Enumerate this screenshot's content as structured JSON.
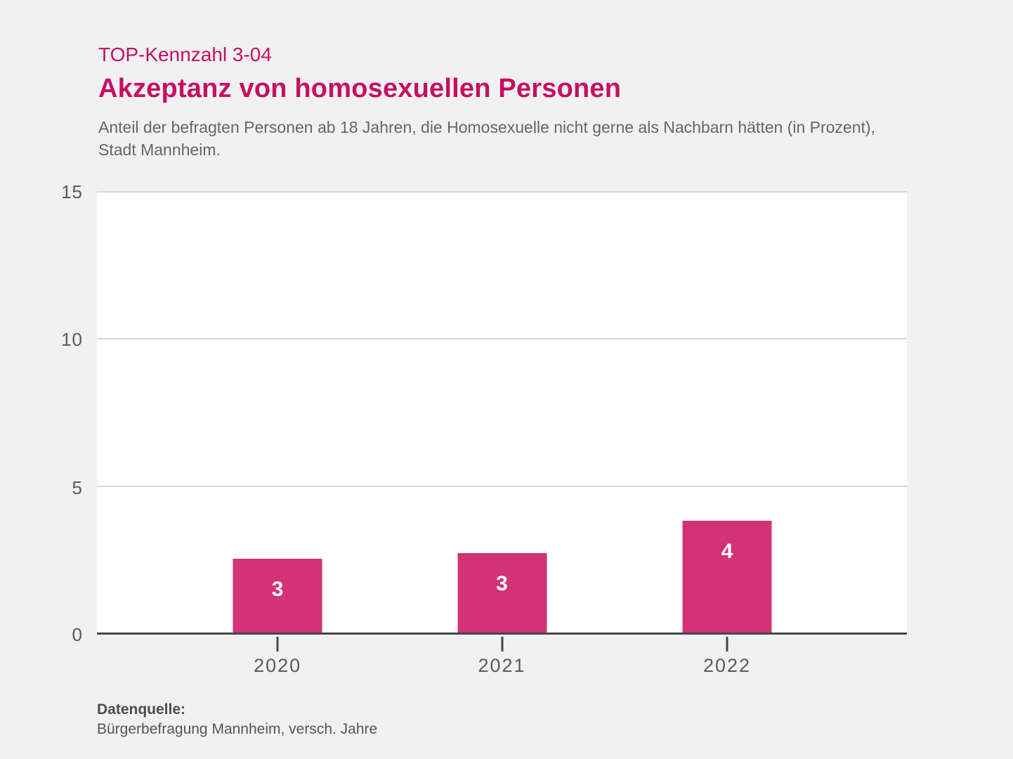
{
  "header": {
    "kicker": "TOP-Kennzahl 3-04",
    "title": "Akzeptanz von homosexuellen Personen",
    "subtitle_line1": "Anteil der befragten Personen ab 18 Jahren, die Homosexuelle nicht gerne als Nachbarn hätten (in Prozent),",
    "subtitle_line2": "Stadt Mannheim."
  },
  "chart_data": {
    "type": "bar",
    "title": "Akzeptanz von homosexuellen Personen",
    "subtitle": "Anteil der befragten Personen ab 18 Jahren, die Homosexuelle nicht gerne als Nachbarn hätten (in Prozent), Stadt Mannheim.",
    "categories": [
      "2020",
      "2021",
      "2022"
    ],
    "values": [
      3,
      3,
      4
    ],
    "bar_labels": [
      "3",
      "3",
      "4"
    ],
    "bar_heights_estimated": [
      2.5,
      2.7,
      3.8
    ],
    "y_ticks": [
      "15",
      "10",
      "5",
      "0"
    ],
    "ylim": [
      0,
      15
    ],
    "xlabel": "",
    "ylabel": "",
    "grid": "horizontal gridlines at 5, 10, 15",
    "legend": "none",
    "bar_color": "#d23277",
    "bar_label_color": "#ffffff"
  },
  "footer": {
    "source_label": "Datenquelle:",
    "source_text": "Bürgerbefragung Mannheim, versch. Jahre"
  },
  "colors": {
    "accent": "#c60f63",
    "background": "#f1f1f1",
    "plot_background": "#ffffff",
    "axis": "#474747",
    "text_gray": "#666666",
    "bar": "#d23277"
  }
}
